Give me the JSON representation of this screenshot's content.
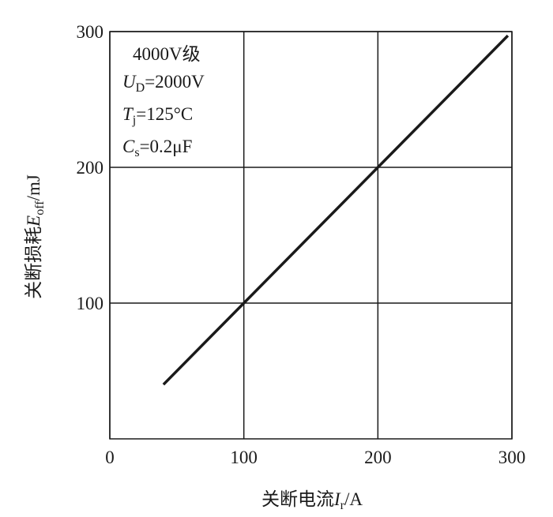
{
  "chart_data": {
    "type": "line",
    "x": [
      40,
      297
    ],
    "values": [
      40,
      297
    ],
    "color": "#1a1a1a",
    "xlim": [
      0,
      300
    ],
    "xticks": [
      0,
      100,
      200,
      300
    ],
    "ylim": [
      0,
      300
    ],
    "yticks": [
      100,
      200,
      300
    ],
    "grid": true,
    "xlabel": {
      "text": "关断电流",
      "var": "I",
      "sub": "r",
      "unit": "/A"
    },
    "ylabel": {
      "text": "关断损耗",
      "var": "E",
      "sub": "off",
      "unit": "/mJ"
    },
    "annotations": {
      "grade": "4000V级",
      "voltage": {
        "var": "U",
        "sub": "D",
        "text": "=2000V"
      },
      "temperature": {
        "var": "T",
        "sub": "j",
        "text": "=125°C"
      },
      "capacitance": {
        "var": "C",
        "sub": "s",
        "text": "=0.2μF"
      }
    }
  }
}
